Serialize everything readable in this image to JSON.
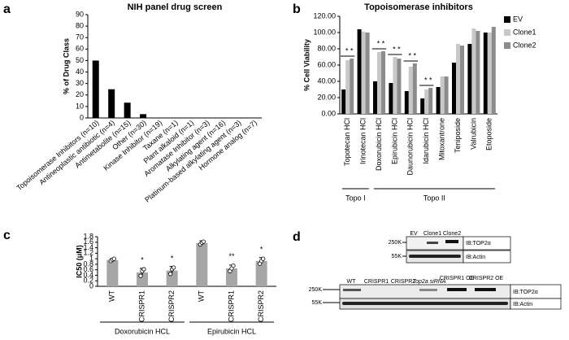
{
  "chart_data": [
    {
      "panel": "a",
      "type": "bar",
      "title": "NIH panel drug screen",
      "ylabel": "% of Drug Class",
      "categories": [
        "Topoisomerase Inhibitors (n=10)",
        "Antineoplastic antibiotic (n=4)",
        "Antimetabolite (n=15)",
        "Other (n=30)",
        "Kinase Inhibitor (n=19)",
        "Taxane (n=1)",
        "Plant alkaloid (n=1)",
        "Aromatase Inhibitor (n=3)",
        "Alkylating agent (n=16)",
        "Platinum-based alkylating agent (n=3)",
        "Hormone analog (n=7)"
      ],
      "values": [
        50,
        25,
        13.3,
        3.3,
        0,
        0,
        0,
        0,
        0,
        0,
        0
      ],
      "color": "#000000",
      "ylim": [
        0,
        90
      ],
      "yticks": [
        0,
        10,
        20,
        30,
        40,
        50,
        60,
        70,
        80,
        90
      ]
    },
    {
      "panel": "b",
      "type": "bar",
      "title": "Topoisomerase inhibitors",
      "ylabel": "% Cell Viability",
      "categories": [
        "Topotecan HCl",
        "Irinotecan HCl",
        "Doxorubicin HCl",
        "Epirubicin HCl",
        "Daunorubicin HCl",
        "Idarubicin HCl",
        "Mitoxantrone",
        "Teniposide",
        "Valrubicin",
        "Etoposide"
      ],
      "series": [
        {
          "name": "EV",
          "color": "#000000",
          "values": [
            30,
            104,
            40,
            38,
            28,
            19,
            33,
            63,
            86,
            100
          ]
        },
        {
          "name": "Clone1",
          "color": "#c8c8c8",
          "values": [
            66,
            101,
            76,
            70,
            58,
            30,
            46,
            86,
            105,
            100
          ]
        },
        {
          "name": "Clone2",
          "color": "#8c8c8c",
          "values": [
            68,
            100,
            77,
            68,
            62,
            32,
            46,
            84,
            102,
            107
          ]
        }
      ],
      "annotations": [
        "* *",
        null,
        "* *",
        "* *",
        "* *",
        "* *",
        null,
        null,
        null,
        null
      ],
      "groups": [
        {
          "label": "Topo I",
          "categories": [
            "Topotecan HCl",
            "Irinotecan HCl"
          ]
        },
        {
          "label": "Topo II",
          "categories": [
            "Doxorubicin HCl",
            "Epirubicin HCl",
            "Daunorubicin HCl",
            "Idarubicin HCl",
            "Mitoxantrone",
            "Teniposide",
            "Valrubicin",
            "Etoposide"
          ]
        }
      ],
      "legend": "upper right",
      "ylim": [
        0,
        120
      ],
      "yticks": [
        {
          "value": 0,
          "label": "0.00"
        },
        {
          "value": 20,
          "label": "20.00"
        },
        {
          "value": 40,
          "label": "40.00"
        },
        {
          "value": 60,
          "label": "60.00"
        },
        {
          "value": 80,
          "label": "80.00"
        },
        {
          "value": 100,
          "label": "100.00"
        },
        {
          "value": 120,
          "label": "120.00"
        }
      ]
    },
    {
      "panel": "c",
      "type": "bar",
      "ylabel": "IC50 (μM)",
      "categories": [
        "WT",
        "CRISPR1",
        "CRISPR2",
        "WT",
        "CRISPR1",
        "CRISPR2"
      ],
      "values": [
        0.95,
        0.5,
        0.57,
        1.57,
        0.65,
        0.92
      ],
      "errors": [
        0.05,
        0.15,
        0.15,
        0.08,
        0.12,
        0.12
      ],
      "points": [
        [
          0.92,
          0.97,
          1.0
        ],
        [
          0.38,
          0.55,
          0.62
        ],
        [
          0.45,
          0.62,
          0.68
        ],
        [
          1.52,
          1.58,
          1.62
        ],
        [
          0.55,
          0.65,
          0.75
        ],
        [
          0.82,
          0.92,
          1.0
        ]
      ],
      "annotations": [
        null,
        "*",
        "*",
        null,
        "**",
        "*"
      ],
      "groups": [
        {
          "label": "Doxorubicin HCL",
          "categories": [
            "WT",
            "CRISPR1",
            "CRISPR2"
          ]
        },
        {
          "label": "Epirubicin HCL",
          "categories": [
            "WT",
            "CRISPR1",
            "CRISPR2"
          ]
        }
      ],
      "color": "#a6a6a6",
      "ylim": [
        0,
        1.8
      ],
      "yticks": [
        0,
        0.2,
        0.4,
        0.6,
        0.8,
        1,
        1.2,
        1.4,
        1.6,
        1.8
      ]
    }
  ],
  "blot": {
    "panel": "d",
    "top": {
      "lanes": [
        "EV",
        "Clone1",
        "Clone2"
      ],
      "markers": [
        "250K",
        "55K"
      ],
      "probes": [
        "IB:TOP2α",
        "IB:Actin"
      ]
    },
    "bottom": {
      "lanes": [
        "WT",
        "CRISPR1",
        "CRISPR2",
        "Top2a siRNA",
        "CRISPR1 OE",
        "CRISPR2 OE"
      ],
      "markers": [
        "250K",
        "55K"
      ],
      "probes": [
        "IB:TOP2α",
        "IB:Actin"
      ]
    }
  }
}
